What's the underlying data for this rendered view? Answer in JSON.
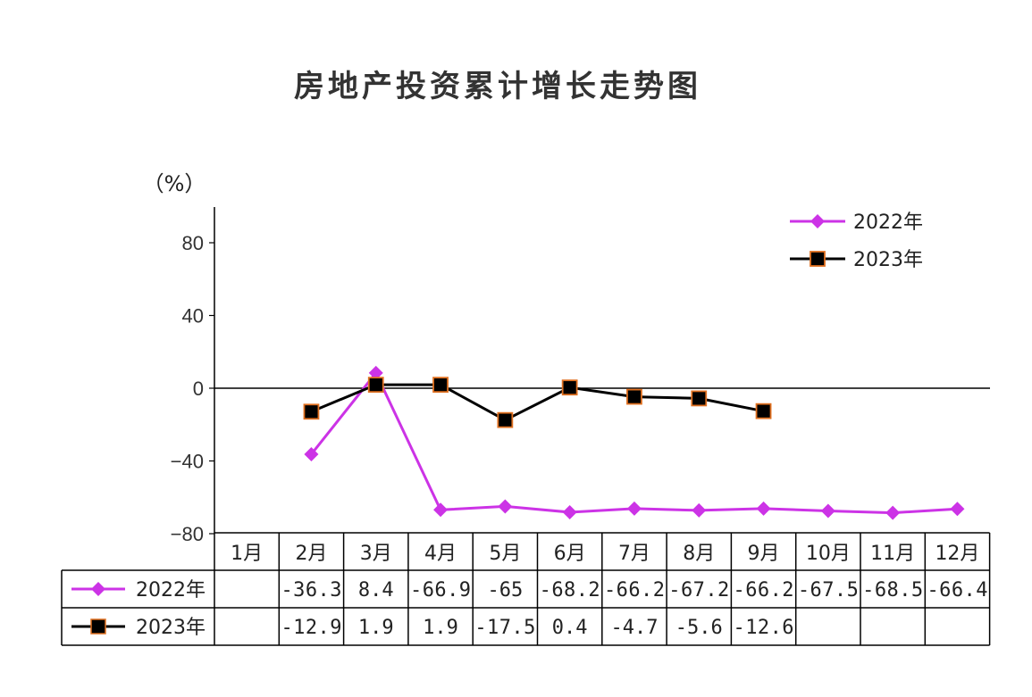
{
  "chart_data": {
    "type": "line",
    "title": "房地产投资累计增长走势图",
    "unit_label": "（%）",
    "categories": [
      "1月",
      "2月",
      "3月",
      "4月",
      "5月",
      "6月",
      "7月",
      "8月",
      "9月",
      "10月",
      "11月",
      "12月"
    ],
    "ylim": [
      -80,
      100
    ],
    "yticks": [
      80,
      40,
      0,
      -40,
      -80
    ],
    "grid": false,
    "legend_position": "top-right",
    "series": [
      {
        "name": "2022年",
        "color": "#CC33E6",
        "marker": "diamond",
        "values": [
          null,
          -36.3,
          8.4,
          -66.9,
          -65,
          -68.2,
          -66.2,
          -67.2,
          -66.2,
          -67.5,
          -68.5,
          -66.4
        ],
        "labels": [
          "",
          "-36.3",
          "8.4",
          "-66.9",
          "-65",
          "-68.2",
          "-66.2",
          "-67.2",
          "-66.2",
          "-67.5",
          "-68.5",
          "-66.4"
        ]
      },
      {
        "name": "2023年",
        "color": "#000000",
        "marker_fill": "#000000",
        "marker_edge": "#E07020",
        "marker": "square",
        "values": [
          null,
          -12.9,
          1.9,
          1.9,
          -17.5,
          0.4,
          -4.7,
          -5.6,
          -12.6,
          null,
          null,
          null
        ],
        "labels": [
          "",
          "-12.9",
          "1.9",
          "1.9",
          "-17.5",
          "0.4",
          "-4.7",
          "-5.6",
          "-12.6",
          "",
          "",
          ""
        ]
      }
    ]
  }
}
